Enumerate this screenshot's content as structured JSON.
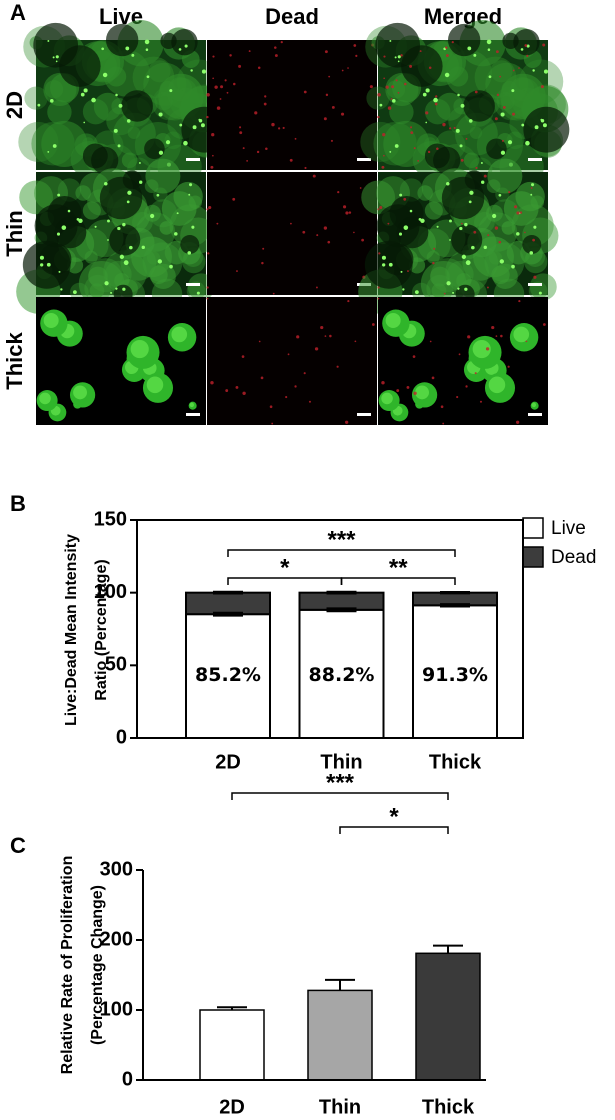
{
  "panel_a": {
    "label": "A",
    "columns": [
      "Live",
      "Dead",
      "Merged"
    ],
    "rows": [
      "2D",
      "Thin",
      "Thick"
    ]
  },
  "chart_data": [
    {
      "type": "stacked-bar",
      "label": "B",
      "y_label": [
        "Live:Dead Mean Intensity",
        "Ratio (Percentage)"
      ],
      "categories": [
        "2D",
        "Thin",
        "Thick"
      ],
      "series": [
        {
          "name": "Live",
          "color": "#ffffff",
          "values": [
            85.2,
            88.2,
            91.3
          ],
          "value_labels": [
            "85.2%",
            "88.2%",
            "91.3%"
          ],
          "errors": [
            1,
            1,
            0.8
          ]
        },
        {
          "name": "Dead",
          "color": "#3c3c3c",
          "values": [
            14.8,
            11.8,
            8.7
          ],
          "errors": [
            0.6,
            0.6,
            0.5
          ]
        }
      ],
      "ylim": [
        0,
        150
      ],
      "yticks": [
        0,
        50,
        100,
        150
      ],
      "annotations": [
        {
          "text": "***",
          "from": "2D",
          "to": "Thick"
        },
        {
          "text": "*",
          "from": "2D",
          "to": "Thin"
        },
        {
          "text": "**",
          "from": "Thin",
          "to": "Thick"
        }
      ]
    },
    {
      "type": "bar",
      "label": "C",
      "y_label": [
        "Relative Rate of Proliferation",
        "(Percentage Change)"
      ],
      "categories": [
        "2D",
        "Thin",
        "Thick"
      ],
      "values": [
        100,
        128,
        181
      ],
      "errors": [
        4,
        15,
        11
      ],
      "colors": [
        "#ffffff",
        "#a6a6a6",
        "#3a3a3a"
      ],
      "ylim": [
        0,
        300
      ],
      "yticks": [
        0,
        100,
        200,
        300
      ],
      "annotations": [
        {
          "text": "***",
          "from": "2D",
          "to": "Thick"
        },
        {
          "text": "*",
          "from": "Thin",
          "to": "Thick"
        }
      ]
    }
  ]
}
